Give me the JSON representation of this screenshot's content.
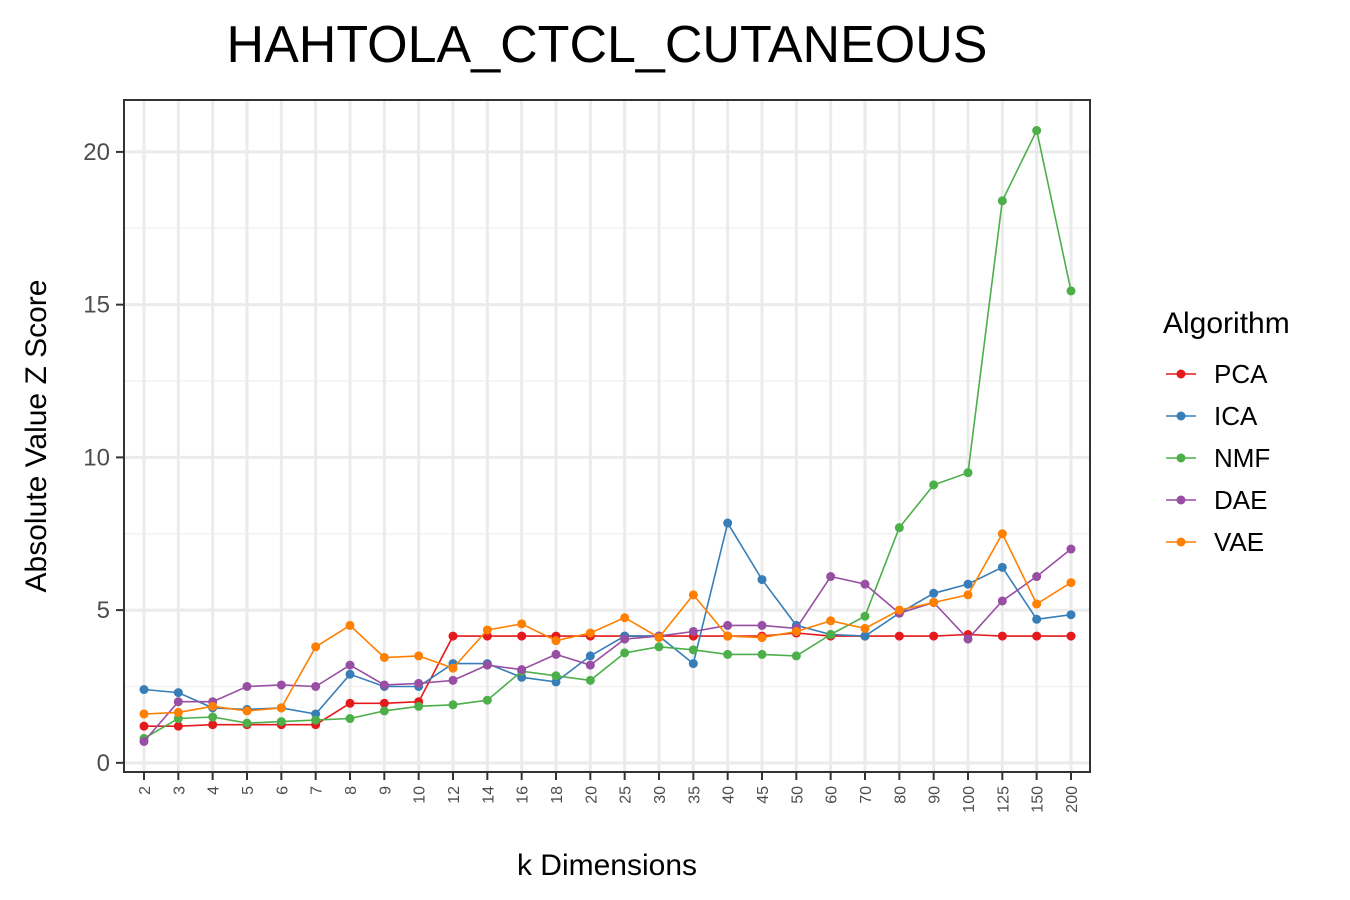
{
  "chart_data": {
    "type": "line",
    "title": "HAHTOLA_CTCL_CUTANEOUS",
    "xlabel": "k Dimensions",
    "ylabel": "Absolute Value Z Score",
    "categories": [
      "2",
      "3",
      "4",
      "5",
      "6",
      "7",
      "8",
      "9",
      "10",
      "12",
      "14",
      "16",
      "18",
      "20",
      "25",
      "30",
      "35",
      "40",
      "45",
      "50",
      "60",
      "70",
      "80",
      "90",
      "100",
      "125",
      "150",
      "200"
    ],
    "yticks": [
      0,
      5,
      10,
      15,
      20
    ],
    "ylim": [
      -0.3,
      21.7
    ],
    "grid": true,
    "legend_title": "Algorithm",
    "legend_position": "right",
    "series": [
      {
        "name": "PCA",
        "color": "#E41A1C",
        "values": [
          1.2,
          1.2,
          1.25,
          1.25,
          1.25,
          1.25,
          1.95,
          1.95,
          2.0,
          4.15,
          4.15,
          4.15,
          4.15,
          4.15,
          4.15,
          4.15,
          4.15,
          4.15,
          4.15,
          4.25,
          4.15,
          4.15,
          4.15,
          4.15,
          4.2,
          4.15,
          4.15,
          4.15
        ]
      },
      {
        "name": "ICA",
        "color": "#377EB8",
        "values": [
          2.4,
          2.3,
          1.8,
          1.75,
          1.8,
          1.6,
          2.9,
          2.5,
          2.5,
          3.25,
          3.25,
          2.8,
          2.65,
          3.5,
          4.15,
          4.15,
          3.25,
          7.85,
          6.0,
          4.5,
          4.2,
          4.15,
          4.9,
          5.55,
          5.85,
          6.4,
          4.7,
          4.85
        ]
      },
      {
        "name": "NMF",
        "color": "#4DAF4A",
        "values": [
          0.8,
          1.45,
          1.5,
          1.3,
          1.35,
          1.4,
          1.45,
          1.7,
          1.85,
          1.9,
          2.05,
          3.0,
          2.85,
          2.7,
          3.6,
          3.8,
          3.7,
          3.55,
          3.55,
          3.5,
          4.2,
          4.8,
          7.7,
          9.1,
          9.5,
          18.4,
          20.7,
          15.45
        ]
      },
      {
        "name": "DAE",
        "color": "#984EA3",
        "values": [
          0.7,
          2.0,
          2.0,
          2.5,
          2.55,
          2.5,
          3.2,
          2.55,
          2.6,
          2.7,
          3.2,
          3.05,
          3.55,
          3.2,
          4.05,
          4.15,
          4.3,
          4.5,
          4.5,
          4.4,
          6.1,
          5.85,
          4.9,
          5.25,
          4.05,
          5.3,
          6.1,
          7.0
        ]
      },
      {
        "name": "VAE",
        "color": "#FF7F00",
        "values": [
          1.6,
          1.65,
          1.85,
          1.7,
          1.8,
          3.8,
          4.5,
          3.45,
          3.5,
          3.1,
          4.35,
          4.55,
          4.0,
          4.25,
          4.75,
          4.1,
          5.5,
          4.15,
          4.1,
          4.3,
          4.65,
          4.4,
          5.0,
          5.25,
          5.5,
          7.5,
          5.2,
          5.9
        ]
      }
    ]
  }
}
